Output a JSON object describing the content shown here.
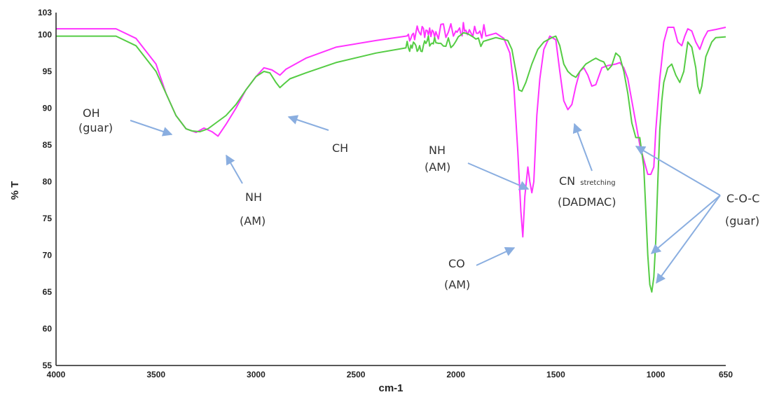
{
  "chart_data": {
    "type": "line",
    "title": "",
    "xlabel": "cm-1",
    "ylabel": "% T",
    "xlim": [
      4000,
      650
    ],
    "ylim": [
      55,
      103
    ],
    "x_ticks": [
      "4000",
      "3500",
      "3000",
      "2500",
      "2000",
      "1500",
      "1000",
      "650"
    ],
    "x_tick_values": [
      4000,
      3500,
      3000,
      2500,
      2000,
      1500,
      1000,
      650
    ],
    "y_ticks": [
      "55",
      "60",
      "65",
      "70",
      "75",
      "80",
      "85",
      "90",
      "95",
      "100",
      "103"
    ],
    "y_tick_values": [
      55,
      60,
      65,
      70,
      75,
      80,
      85,
      90,
      95,
      100,
      103
    ],
    "grid": false,
    "series": [
      {
        "color": "#ff33ff",
        "points": [
          [
            4000,
            100.8
          ],
          [
            3700,
            100.8
          ],
          [
            3600,
            99.5
          ],
          [
            3500,
            96
          ],
          [
            3450,
            92
          ],
          [
            3400,
            89
          ],
          [
            3350,
            87.2
          ],
          [
            3300,
            86.7
          ],
          [
            3260,
            87.3
          ],
          [
            3220,
            86.8
          ],
          [
            3190,
            86.2
          ],
          [
            3150,
            87.8
          ],
          [
            3100,
            90
          ],
          [
            3050,
            92.5
          ],
          [
            3000,
            94.3
          ],
          [
            2960,
            95.5
          ],
          [
            2920,
            95.2
          ],
          [
            2880,
            94.5
          ],
          [
            2850,
            95.3
          ],
          [
            2750,
            96.8
          ],
          [
            2600,
            98.3
          ],
          [
            2400,
            99.2
          ],
          [
            2250,
            99.8
          ],
          [
            2200,
            100.3
          ],
          [
            2150,
            100.6
          ],
          [
            2100,
            100.4
          ],
          [
            2000,
            100.5
          ],
          [
            1950,
            100.6
          ],
          [
            1880,
            100.5
          ],
          [
            1800,
            100.2
          ],
          [
            1760,
            99.5
          ],
          [
            1730,
            97.5
          ],
          [
            1710,
            93
          ],
          [
            1690,
            84
          ],
          [
            1675,
            76
          ],
          [
            1665,
            72.5
          ],
          [
            1655,
            78
          ],
          [
            1640,
            82
          ],
          [
            1630,
            80
          ],
          [
            1620,
            78.5
          ],
          [
            1610,
            80
          ],
          [
            1595,
            89
          ],
          [
            1580,
            94
          ],
          [
            1560,
            98
          ],
          [
            1530,
            99.8
          ],
          [
            1500,
            99.3
          ],
          [
            1480,
            95
          ],
          [
            1460,
            91
          ],
          [
            1440,
            89.8
          ],
          [
            1420,
            90.5
          ],
          [
            1400,
            93
          ],
          [
            1380,
            95
          ],
          [
            1360,
            95.5
          ],
          [
            1340,
            94.5
          ],
          [
            1320,
            93
          ],
          [
            1300,
            93.2
          ],
          [
            1270,
            95.5
          ],
          [
            1240,
            95.8
          ],
          [
            1200,
            96
          ],
          [
            1180,
            96.2
          ],
          [
            1160,
            95.5
          ],
          [
            1140,
            94
          ],
          [
            1120,
            91
          ],
          [
            1100,
            88
          ],
          [
            1080,
            85
          ],
          [
            1060,
            83
          ],
          [
            1040,
            81
          ],
          [
            1025,
            81
          ],
          [
            1010,
            82
          ],
          [
            1000,
            87
          ],
          [
            980,
            94
          ],
          [
            960,
            99
          ],
          [
            940,
            101
          ],
          [
            910,
            101
          ],
          [
            890,
            99
          ],
          [
            870,
            98.5
          ],
          [
            855,
            99.8
          ],
          [
            840,
            100.8
          ],
          [
            820,
            100.5
          ],
          [
            800,
            99
          ],
          [
            780,
            98
          ],
          [
            760,
            99.5
          ],
          [
            740,
            100.5
          ],
          [
            700,
            100.7
          ],
          [
            650,
            101
          ]
        ]
      },
      {
        "color": "#55cc44",
        "points": [
          [
            4000,
            99.8
          ],
          [
            3700,
            99.8
          ],
          [
            3600,
            98.5
          ],
          [
            3500,
            95
          ],
          [
            3450,
            92
          ],
          [
            3400,
            89
          ],
          [
            3350,
            87.2
          ],
          [
            3320,
            86.9
          ],
          [
            3280,
            86.8
          ],
          [
            3240,
            87.2
          ],
          [
            3200,
            88
          ],
          [
            3150,
            89
          ],
          [
            3100,
            90.5
          ],
          [
            3050,
            92.5
          ],
          [
            3000,
            94.3
          ],
          [
            2960,
            95
          ],
          [
            2930,
            94.8
          ],
          [
            2900,
            93.5
          ],
          [
            2880,
            92.8
          ],
          [
            2860,
            93.3
          ],
          [
            2830,
            94
          ],
          [
            2750,
            94.8
          ],
          [
            2600,
            96.2
          ],
          [
            2400,
            97.5
          ],
          [
            2250,
            98.2
          ],
          [
            2200,
            98.5
          ],
          [
            2150,
            98.8
          ],
          [
            2100,
            98.9
          ],
          [
            2000,
            99.1
          ],
          [
            1900,
            99.4
          ],
          [
            1800,
            99.6
          ],
          [
            1740,
            99.2
          ],
          [
            1720,
            98
          ],
          [
            1700,
            95
          ],
          [
            1685,
            92.5
          ],
          [
            1670,
            92.3
          ],
          [
            1650,
            93.5
          ],
          [
            1620,
            96
          ],
          [
            1590,
            98
          ],
          [
            1560,
            99
          ],
          [
            1520,
            99.6
          ],
          [
            1500,
            99.8
          ],
          [
            1480,
            98.5
          ],
          [
            1460,
            96
          ],
          [
            1440,
            95
          ],
          [
            1420,
            94.5
          ],
          [
            1400,
            94.2
          ],
          [
            1380,
            95
          ],
          [
            1350,
            96
          ],
          [
            1320,
            96.5
          ],
          [
            1300,
            96.8
          ],
          [
            1280,
            96.5
          ],
          [
            1260,
            96.3
          ],
          [
            1240,
            95.2
          ],
          [
            1220,
            95.8
          ],
          [
            1200,
            97.5
          ],
          [
            1180,
            97
          ],
          [
            1160,
            95
          ],
          [
            1140,
            92
          ],
          [
            1120,
            88
          ],
          [
            1100,
            86
          ],
          [
            1080,
            86
          ],
          [
            1060,
            82
          ],
          [
            1050,
            76
          ],
          [
            1040,
            70
          ],
          [
            1030,
            66
          ],
          [
            1020,
            65
          ],
          [
            1010,
            67
          ],
          [
            1000,
            72
          ],
          [
            990,
            80
          ],
          [
            980,
            87
          ],
          [
            970,
            91
          ],
          [
            960,
            93.5
          ],
          [
            940,
            95.5
          ],
          [
            920,
            96
          ],
          [
            900,
            94.5
          ],
          [
            880,
            93.5
          ],
          [
            860,
            95
          ],
          [
            840,
            99
          ],
          [
            820,
            98.3
          ],
          [
            800,
            95.5
          ],
          [
            790,
            93
          ],
          [
            780,
            92
          ],
          [
            770,
            93
          ],
          [
            750,
            97
          ],
          [
            720,
            99
          ],
          [
            700,
            99.6
          ],
          [
            650,
            99.7
          ]
        ]
      }
    ],
    "annotations": [
      {
        "lines": [
          "OH",
          "(guar)"
        ]
      },
      {
        "lines": [
          "NH",
          "(AM)"
        ]
      },
      {
        "lines": [
          "CH"
        ]
      },
      {
        "lines": [
          "NH",
          "(AM)"
        ]
      },
      {
        "lines": [
          "CO",
          "(AM)"
        ]
      },
      {
        "main": "CN",
        "sub": "stretching",
        "line2": "(DADMAC)"
      },
      {
        "lines": [
          "C-O-C",
          "(guar)"
        ]
      }
    ]
  }
}
